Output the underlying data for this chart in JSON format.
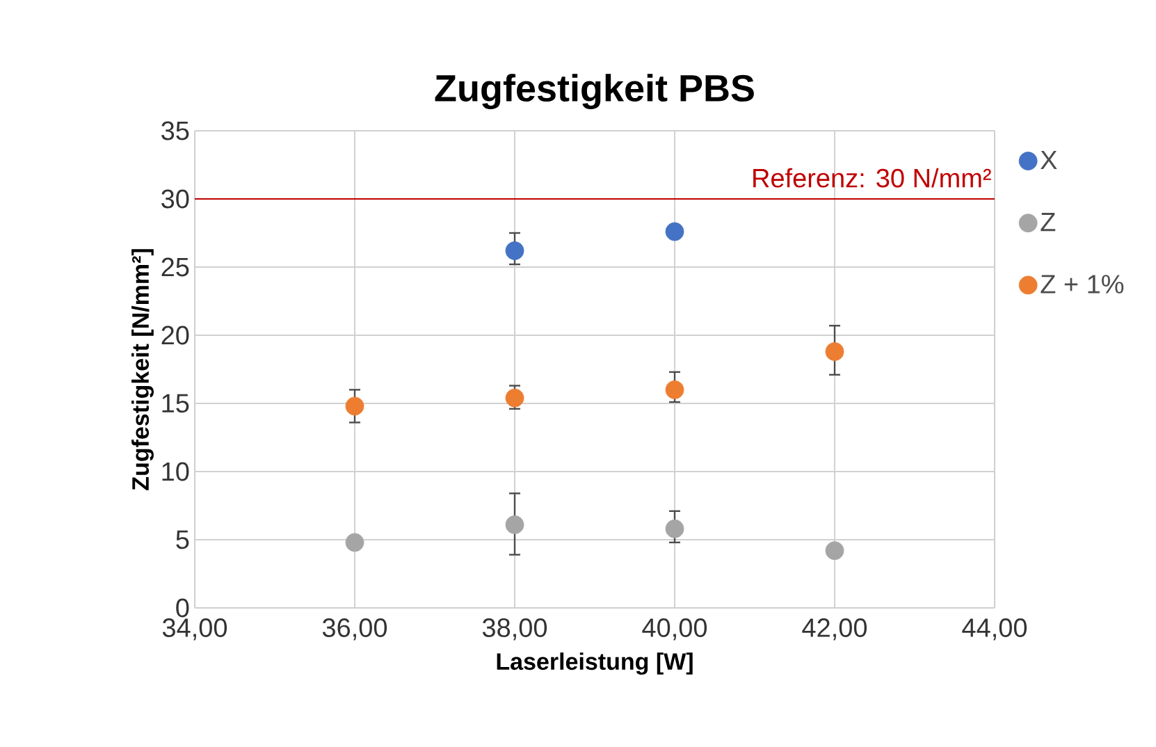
{
  "chart_data": {
    "type": "scatter",
    "title": "Zugfestigkeit PBS",
    "xlabel": "Laserleistung [W]",
    "ylabel": "Zugfestigkeit [N/mm²]",
    "xlim": [
      34,
      44
    ],
    "xticks": [
      {
        "value": 34,
        "label": "34,00"
      },
      {
        "value": 36,
        "label": "36,00"
      },
      {
        "value": 38,
        "label": "38,00"
      },
      {
        "value": 40,
        "label": "40,00"
      },
      {
        "value": 42,
        "label": "42,00"
      },
      {
        "value": 44,
        "label": "44,00"
      }
    ],
    "ylim": [
      0,
      35
    ],
    "yticks": [
      0,
      5,
      10,
      15,
      20,
      25,
      30,
      35
    ],
    "grid": true,
    "legend": "right",
    "marker": "circle",
    "ref_lines": [
      {
        "axis": "y",
        "value": 30,
        "label": "Referenz: 30 N/mm²",
        "color": "#c00000"
      }
    ],
    "series": [
      {
        "name": "X",
        "color": "#4472c4",
        "x": [
          38,
          40
        ],
        "values": [
          26.2,
          27.6
        ],
        "errors": [
          [
            25.2,
            27.5
          ],
          null
        ]
      },
      {
        "name": "Z",
        "color": "#a5a5a5",
        "x": [
          36,
          38,
          40,
          42
        ],
        "values": [
          4.8,
          6.1,
          5.8,
          4.2
        ],
        "errors": [
          null,
          [
            3.9,
            8.4
          ],
          [
            4.8,
            7.1
          ],
          null
        ]
      },
      {
        "name": "Z + 1%",
        "color": "#ed7d31",
        "x": [
          36,
          38,
          40,
          42
        ],
        "values": [
          14.8,
          15.4,
          16.0,
          18.8
        ],
        "errors": [
          [
            13.6,
            16.0
          ],
          [
            14.6,
            16.3
          ],
          [
            15.1,
            17.3
          ],
          [
            17.1,
            20.7
          ]
        ]
      }
    ]
  }
}
